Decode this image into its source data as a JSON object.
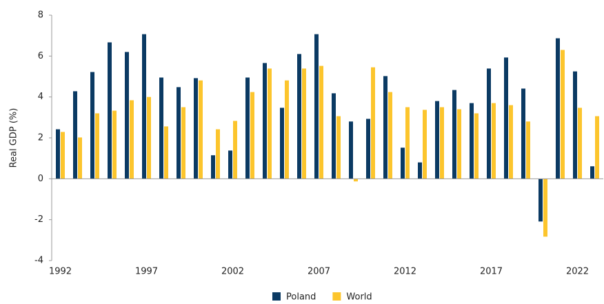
{
  "chart_data": {
    "type": "bar",
    "y_label": "Real GDP (%)",
    "categories": [
      "1992",
      null,
      null,
      null,
      null,
      "1997",
      null,
      null,
      null,
      null,
      "2002",
      null,
      null,
      null,
      null,
      "2007",
      null,
      null,
      null,
      null,
      "2012",
      null,
      null,
      null,
      null,
      "2017",
      null,
      null,
      null,
      null,
      "2022",
      null
    ],
    "series": [
      {
        "name": "Poland",
        "color": "#0b3a63",
        "values": [
          2.42,
          4.28,
          5.22,
          6.67,
          6.2,
          7.07,
          4.95,
          4.48,
          4.92,
          1.15,
          1.38,
          4.95,
          5.66,
          3.47,
          6.1,
          7.07,
          4.18,
          2.8,
          2.93,
          5.02,
          1.52,
          0.8,
          3.8,
          4.34,
          3.7,
          5.39,
          5.93,
          4.41,
          -2.09,
          6.87,
          5.25,
          0.61
        ]
      },
      {
        "name": "World",
        "color": "#fcc52d",
        "values": [
          2.29,
          2.02,
          3.2,
          3.33,
          3.84,
          4.0,
          2.56,
          3.5,
          4.81,
          2.42,
          2.83,
          4.24,
          5.39,
          4.81,
          5.39,
          5.52,
          3.06,
          -0.13,
          5.45,
          4.24,
          3.5,
          3.37,
          3.5,
          3.4,
          3.2,
          3.7,
          3.6,
          2.8,
          -2.83,
          6.3,
          3.47,
          3.06
        ]
      }
    ],
    "ylim": [
      -4,
      8
    ],
    "yticks": [
      -4,
      -2,
      0,
      2,
      4,
      6,
      8
    ],
    "legend": "bottom"
  }
}
